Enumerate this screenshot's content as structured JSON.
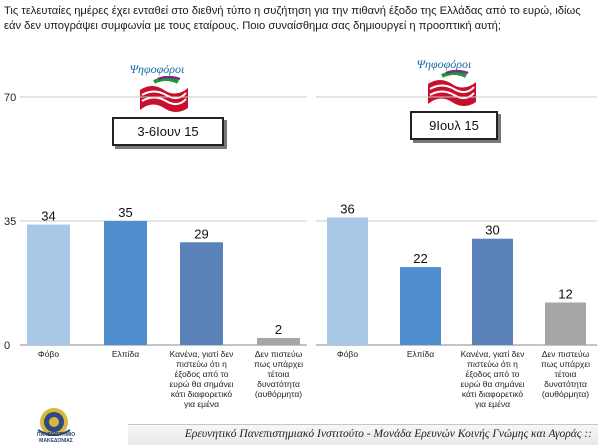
{
  "question": "Τις τελευταίες ημέρες έχει ενταθεί στο διεθνή τύπο η συζήτηση για την πιθανή έξοδο της Ελλάδας από το ευρώ, ιδίως εάν δεν υπογράψει συμφωνία με τους εταίρους. Ποιο συναίσθημα σας δημιουργεί η προοπτική αυτή;",
  "footer": "Ερευνητικό Πανεπιστημιακό Ινστιτούτο - Μονάδα Ερευνών Κοινής Γνώμης και Αγοράς ::",
  "university_logo_text": "ΠΑΝΕΠΙΣΤΗΜΙΟ ΜΑΚΕΔΟΝΙΑΣ",
  "colors": {
    "bar_fear": "#a9c8e8",
    "bar_hope": "#4f8fcd",
    "bar_nothing": "#5b82b8",
    "bar_noexit": "#a6a6a6",
    "axis": "#888888",
    "gridline": "#c8c8c8"
  },
  "chart_data": [
    {
      "type": "bar",
      "panel_label": "Ψηφοφόροι",
      "date_label": "3-6Ιουν 15",
      "categories": [
        [
          "Φόβο"
        ],
        [
          "Ελπίδα"
        ],
        [
          "Κανένα, γιατί δεν",
          "πιστεύω ότι η",
          "έξοδος από το",
          "ευρώ θα σημάνει",
          "κάτι διαφορετικό",
          "για εμένα"
        ],
        [
          "Δεν πιστεύω",
          "πως υπάρχει",
          "τέτοια",
          "δυνατότητα",
          "(αυθόρμητα)"
        ]
      ],
      "values": [
        34,
        35,
        29,
        2
      ],
      "ylim": [
        0,
        70
      ],
      "yticks": [
        0,
        35,
        70
      ]
    },
    {
      "type": "bar",
      "panel_label": "Ψηφοφόροι",
      "date_label": "9Ιουλ 15",
      "categories": [
        [
          "Φόβο"
        ],
        [
          "Ελπίδα"
        ],
        [
          "Κανένα, γιατί δεν",
          "πιστεύω ότι η",
          "έξοδος από το",
          "ευρώ θα σημάνει",
          "κάτι διαφορετικό",
          "για εμένα"
        ],
        [
          "Δεν πιστεύω",
          "πως υπάρχει",
          "τέτοια",
          "δυνατότητα",
          "(αυθόρμητα)"
        ]
      ],
      "values": [
        36,
        22,
        30,
        12
      ],
      "ylim": [
        0,
        70
      ],
      "yticks": [
        0,
        35,
        70
      ]
    }
  ]
}
